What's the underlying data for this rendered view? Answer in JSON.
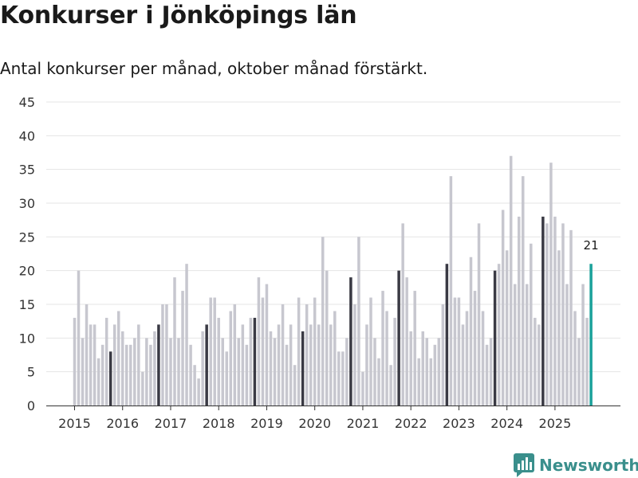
{
  "title": "Konkurser i Jönköpings län",
  "subtitle": "Antal konkurser per månad, oktober månad förstärkt.",
  "brand": {
    "name": "Newsworthy",
    "color": "#3a8f8c"
  },
  "colors": {
    "bar": "#c7c7cf",
    "highlight": "#3a3a44",
    "latest": "#1aa19a",
    "grid": "#e4e4e4",
    "axis": "#333333"
  },
  "chart_data": {
    "type": "bar",
    "title": "Konkurser i Jönköpings län",
    "subtitle": "Antal konkurser per månad, oktober månad förstärkt.",
    "xlabel": "",
    "ylabel": "",
    "ylim": [
      0,
      45
    ],
    "yticks": [
      0,
      5,
      10,
      15,
      20,
      25,
      30,
      35,
      40,
      45
    ],
    "xticks": [
      "2015",
      "2016",
      "2017",
      "2018",
      "2019",
      "2020",
      "2021",
      "2022",
      "2023",
      "2024",
      "2025"
    ],
    "start": "2015-01",
    "end": "2025-10",
    "highlight_month": "oktober",
    "latest_label": "21",
    "values": [
      13,
      20,
      10,
      15,
      12,
      12,
      7,
      9,
      13,
      8,
      12,
      14,
      11,
      9,
      9,
      10,
      12,
      5,
      10,
      9,
      11,
      12,
      15,
      15,
      10,
      19,
      10,
      17,
      21,
      9,
      6,
      4,
      11,
      12,
      16,
      16,
      13,
      10,
      8,
      14,
      15,
      10,
      12,
      9,
      13,
      13,
      19,
      16,
      18,
      11,
      10,
      12,
      15,
      9,
      12,
      6,
      16,
      11,
      15,
      12,
      16,
      12,
      25,
      20,
      12,
      14,
      8,
      8,
      10,
      19,
      15,
      25,
      5,
      12,
      16,
      10,
      7,
      17,
      14,
      6,
      13,
      20,
      27,
      19,
      11,
      17,
      7,
      11,
      10,
      7,
      9,
      10,
      15,
      21,
      34,
      16,
      16,
      12,
      14,
      22,
      17,
      27,
      14,
      9,
      10,
      20,
      21,
      29,
      23,
      37,
      18,
      28,
      34,
      18,
      24,
      13,
      12,
      28,
      27,
      36,
      28,
      23,
      27,
      18,
      26,
      14,
      10,
      18,
      13,
      21
    ]
  }
}
